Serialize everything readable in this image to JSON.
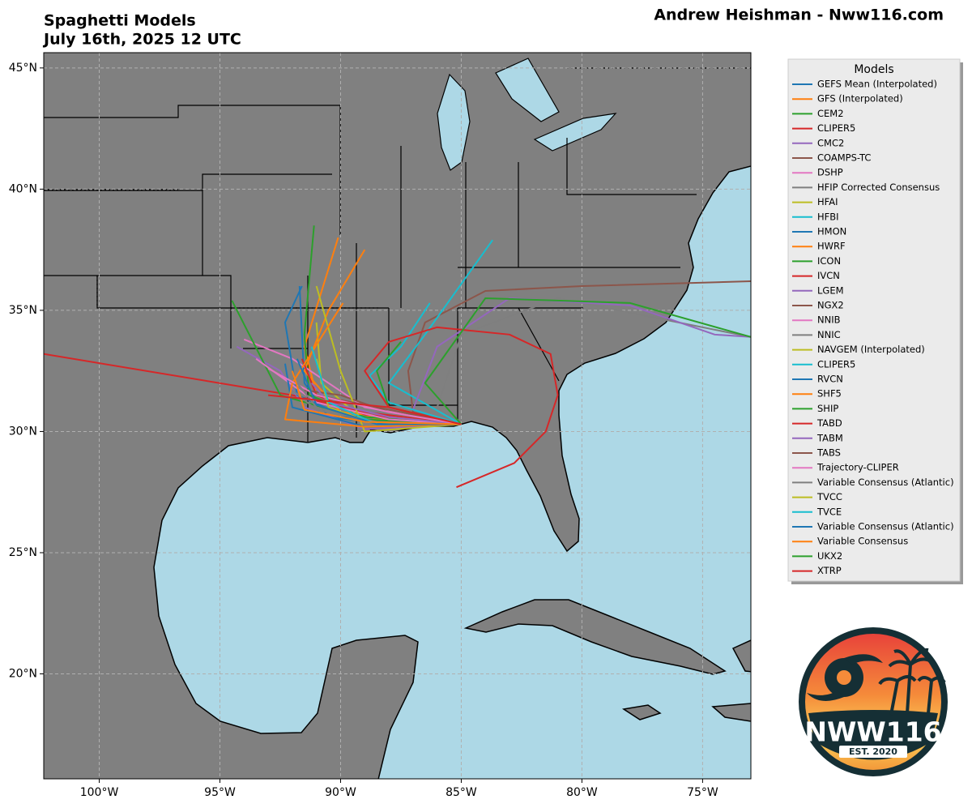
{
  "chart_data": {
    "type": "line",
    "title": "Spaghetti Models",
    "subtitle": "July 16th, 2025 12 UTC",
    "attribution": "Andrew Heishman - Nww116.com",
    "legend_title": "Models",
    "legend": "outside right",
    "grid": true,
    "xlim": [
      -102.3,
      -73.0
    ],
    "ylim": [
      15.67,
      45.63
    ],
    "xticks": [
      {
        "value": -100,
        "label": "100°W"
      },
      {
        "value": -95,
        "label": "95°W"
      },
      {
        "value": -90,
        "label": "90°W"
      },
      {
        "value": -85,
        "label": "85°W"
      },
      {
        "value": -80,
        "label": "80°W"
      },
      {
        "value": -75,
        "label": "75°W"
      }
    ],
    "yticks": [
      {
        "value": 20,
        "label": "20°N"
      },
      {
        "value": 25,
        "label": "25°N"
      },
      {
        "value": 30,
        "label": "30°N"
      },
      {
        "value": 35,
        "label": "35°N"
      },
      {
        "value": 40,
        "label": "40°N"
      },
      {
        "value": 45,
        "label": "45°N"
      }
    ],
    "series": [
      {
        "name": "GEFS Mean (Interpolated)",
        "color": "#1f77b4",
        "x": [
          -85,
          -88,
          -90.5,
          -91.5,
          -91.7
        ],
        "y": [
          30.3,
          30.3,
          30.6,
          32,
          36
        ]
      },
      {
        "name": "GFS (Interpolated)",
        "color": "#ff7f0e",
        "x": [
          -85,
          -88.5,
          -91,
          -91.5,
          -90.1
        ],
        "y": [
          30.3,
          30.5,
          31.5,
          33.5,
          38
        ]
      },
      {
        "name": "CEM2",
        "color": "#2ca02c",
        "x": [
          -85,
          -89,
          -91.3,
          -91.5,
          -91.1
        ],
        "y": [
          30.3,
          30.6,
          31.5,
          34,
          38.5
        ]
      },
      {
        "name": "CLIPER5",
        "color": "#d62728",
        "x": [
          -85,
          -89,
          -92,
          -102.3
        ],
        "y": [
          30.3,
          30.8,
          31.5,
          33.2
        ]
      },
      {
        "name": "CMC2",
        "color": "#9467bd",
        "x": [
          -85,
          -89,
          -91.5,
          -92.5,
          -94.3
        ],
        "y": [
          30.3,
          30.1,
          31,
          32.5,
          33.5
        ]
      },
      {
        "name": "COAMPS-TC",
        "color": "#8c564b",
        "x": [
          -85,
          -87,
          -87.2,
          -86.5,
          -84,
          -80,
          -73
        ],
        "y": [
          30.3,
          30.8,
          32.5,
          34.5,
          35.8,
          36,
          36.2
        ]
      },
      {
        "name": "DSHP",
        "color": "#e377c2",
        "x": [
          -85,
          -89,
          -92,
          -94
        ],
        "y": [
          30.3,
          31,
          33,
          33.8
        ]
      },
      {
        "name": "HFIP Corrected Consensus",
        "color": "#7f7f7f",
        "x": [
          -85,
          -86,
          -85,
          -81,
          -76,
          -73
        ],
        "y": [
          30.3,
          31,
          34,
          35.5,
          34.5,
          33.9
        ]
      },
      {
        "name": "HFAI",
        "color": "#bcbd22",
        "x": [
          -85,
          -89,
          -90.8,
          -91
        ],
        "y": [
          30.3,
          30.4,
          32,
          34.5
        ]
      },
      {
        "name": "HFBI",
        "color": "#17becf",
        "x": [
          -85,
          -88,
          -86.5,
          -83.7
        ],
        "y": [
          30.3,
          32,
          34,
          37.9
        ]
      },
      {
        "name": "HMON",
        "color": "#1f77b4",
        "x": [
          -85,
          -89.5,
          -91.8,
          -92.3,
          -91.6
        ],
        "y": [
          30.3,
          30.5,
          31.5,
          34.5,
          36
        ]
      },
      {
        "name": "HWRF",
        "color": "#ff7f0e",
        "x": [
          -85,
          -90,
          -91.5,
          -90.5,
          -89
        ],
        "y": [
          30.3,
          30.8,
          32.5,
          35,
          37.5
        ]
      },
      {
        "name": "ICON",
        "color": "#2ca02c",
        "x": [
          -85,
          -89,
          -92.5,
          -94.5
        ],
        "y": [
          30.3,
          30.5,
          31.5,
          35.4
        ]
      },
      {
        "name": "IVCN",
        "color": "#d62728",
        "x": [
          -85,
          -89,
          -91,
          -91.6
        ],
        "y": [
          30.3,
          30.7,
          31.5,
          33
        ]
      },
      {
        "name": "LGEM",
        "color": "#9467bd",
        "x": [
          -85,
          -87,
          -86,
          -83,
          -78,
          -74.5,
          -73
        ],
        "y": [
          30.3,
          30.9,
          33.5,
          35.5,
          35.2,
          34,
          33.9
        ]
      },
      {
        "name": "NGX2",
        "color": "#8c564b",
        "x": [
          -85,
          -88,
          -90,
          -91.5
        ],
        "y": [
          30.3,
          30.8,
          31.5,
          31.7
        ]
      },
      {
        "name": "NNIB",
        "color": "#e377c2",
        "x": [
          -85,
          -88,
          -91,
          -93.5
        ],
        "y": [
          30.3,
          30.5,
          31.2,
          33
        ]
      },
      {
        "name": "NNIC",
        "color": "#7f7f7f",
        "x": [
          -85,
          -88.5,
          -91,
          -92
        ],
        "y": [
          30.3,
          30.4,
          30.9,
          31.7
        ]
      },
      {
        "name": "NAVGEM (Interpolated)",
        "color": "#bcbd22",
        "x": [
          -85,
          -89,
          -90,
          -91
        ],
        "y": [
          30.3,
          30,
          32.5,
          36
        ]
      },
      {
        "name": "CLIPER5",
        "color": "#17becf",
        "x": [
          -85,
          -88,
          -88.8,
          -87.5,
          -86.3
        ],
        "y": [
          30.3,
          31.2,
          32.3,
          33.5,
          35.3
        ]
      },
      {
        "name": "RVCN",
        "color": "#1f77b4",
        "x": [
          -85,
          -89,
          -92,
          -92.3
        ],
        "y": [
          30.3,
          30.2,
          31,
          32.8
        ]
      },
      {
        "name": "SHF5",
        "color": "#ff7f0e",
        "x": [
          -85,
          -89,
          -92.3,
          -92,
          -89.9
        ],
        "y": [
          30.3,
          30.2,
          30.5,
          32,
          35.3
        ]
      },
      {
        "name": "SHIP",
        "color": "#2ca02c",
        "x": [
          -85,
          -88,
          -88.5,
          -87.5
        ],
        "y": [
          30.3,
          31,
          32.5,
          33.7
        ]
      },
      {
        "name": "TABD",
        "color": "#d62728",
        "x": [
          -85,
          -88,
          -89,
          -88,
          -86,
          -83,
          -81.3,
          -81,
          -81.5,
          -82.8,
          -85.2
        ],
        "y": [
          30.3,
          31,
          32.5,
          33.7,
          34.3,
          34,
          33.2,
          31.5,
          30,
          28.7,
          27.7
        ]
      },
      {
        "name": "TABM",
        "color": "#9467bd",
        "x": [
          -85,
          -88,
          -90.5,
          -91.2
        ],
        "y": [
          30.3,
          30.6,
          31.2,
          32
        ]
      },
      {
        "name": "TABS",
        "color": "#8c564b",
        "x": [
          -85,
          -88,
          -90,
          -91
        ],
        "y": [
          30.3,
          30.9,
          31.3,
          31.5
        ]
      },
      {
        "name": "Trajectory-CLIPER",
        "color": "#e377c2",
        "x": [
          -85,
          -88,
          -91,
          -93
        ],
        "y": [
          30.3,
          30.8,
          31.5,
          32.6
        ]
      },
      {
        "name": "Variable Consensus (Atlantic)",
        "color": "#7f7f7f",
        "x": [
          -85,
          -88.5,
          -91,
          -91.8
        ],
        "y": [
          30.3,
          30.3,
          31,
          32
        ]
      },
      {
        "name": "TVCC",
        "color": "#bcbd22",
        "x": [
          -85,
          -88.5,
          -90.5,
          -91
        ],
        "y": [
          30.3,
          30.3,
          31,
          33
        ]
      },
      {
        "name": "TVCE",
        "color": "#17becf",
        "x": [
          -85,
          -88.5,
          -90.5,
          -91.2
        ],
        "y": [
          30.3,
          30.3,
          31.2,
          33.5
        ]
      },
      {
        "name": "Variable Consensus (Atlantic)",
        "color": "#1f77b4",
        "x": [
          -85,
          -88.5,
          -91,
          -91.8
        ],
        "y": [
          30.3,
          30.3,
          31.1,
          33
        ]
      },
      {
        "name": "Variable Consensus",
        "color": "#ff7f0e",
        "x": [
          -85,
          -89,
          -91.5,
          -92
        ],
        "y": [
          30.3,
          30.4,
          30.9,
          32.5
        ]
      },
      {
        "name": "UKX2",
        "color": "#2ca02c",
        "x": [
          -85,
          -86.5,
          -84,
          -78,
          -73
        ],
        "y": [
          30.3,
          32,
          35.5,
          35.3,
          33.9
        ]
      },
      {
        "name": "XTRP",
        "color": "#d62728",
        "x": [
          -85,
          -88,
          -91,
          -93
        ],
        "y": [
          30.3,
          31,
          31.3,
          31.5
        ]
      }
    ]
  },
  "logo": {
    "text": "NWW116",
    "subtitle": "EST. 2020"
  }
}
